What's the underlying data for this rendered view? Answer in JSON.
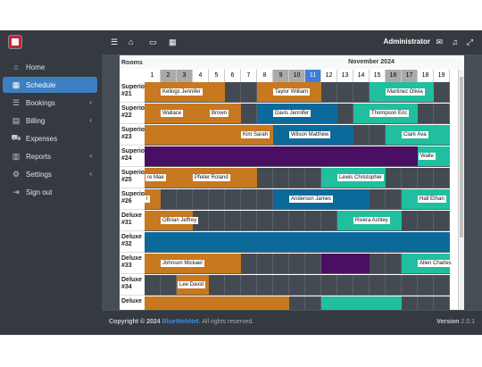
{
  "topbar": {
    "user": "Administrator"
  },
  "sidebar": {
    "items": [
      {
        "label": "Home",
        "icon": "home-icon",
        "active": false,
        "chevron": false
      },
      {
        "label": "Schedule",
        "icon": "calendar-icon",
        "active": true,
        "chevron": false
      },
      {
        "label": "Bookings",
        "icon": "list-icon",
        "active": false,
        "chevron": true
      },
      {
        "label": "Billing",
        "icon": "file-icon",
        "active": false,
        "chevron": true
      },
      {
        "label": "Expenses",
        "icon": "cart-icon",
        "active": false,
        "chevron": false
      },
      {
        "label": "Reports",
        "icon": "chart-icon",
        "active": false,
        "chevron": true
      },
      {
        "label": "Settings",
        "icon": "gear-icon",
        "active": false,
        "chevron": true
      },
      {
        "label": "Sign out",
        "icon": "signout-icon",
        "active": false,
        "chevron": false
      }
    ]
  },
  "schedule": {
    "rooms_header": "Rooms",
    "month": "November 2024",
    "today": 11,
    "days": [
      1,
      2,
      3,
      4,
      5,
      6,
      7,
      8,
      9,
      10,
      11,
      12,
      13,
      14,
      15,
      16,
      17,
      18,
      19
    ],
    "weekend_days": [
      2,
      3,
      9,
      10,
      16,
      17
    ],
    "rooms": [
      {
        "type": "Superior",
        "number": "#21"
      },
      {
        "type": "Superior",
        "number": "#22"
      },
      {
        "type": "Superior",
        "number": "#23"
      },
      {
        "type": "Superior",
        "number": "#24"
      },
      {
        "type": "Superior",
        "number": "#25"
      },
      {
        "type": "Superior",
        "number": "#26"
      },
      {
        "type": "Deluxe",
        "number": "#31"
      },
      {
        "type": "Deluxe",
        "number": "#32"
      },
      {
        "type": "Deluxe",
        "number": "#33"
      },
      {
        "type": "Deluxe",
        "number": "#34"
      },
      {
        "type": "Deluxe",
        "number": ""
      }
    ],
    "colors": {
      "orange": "#c8781e",
      "blue": "#0c6a9a",
      "teal": "#1fbf9f",
      "purple": "#4a0f62"
    },
    "bookings": [
      {
        "room": 0,
        "start": 1,
        "end": 5,
        "color": "orange",
        "label": "Kellogs Jennifer"
      },
      {
        "room": 0,
        "start": 8,
        "end": 11,
        "color": "orange",
        "label": "Taylor William"
      },
      {
        "room": 0,
        "start": 15,
        "end": 18,
        "color": "teal",
        "label": "Martinez Olivia"
      },
      {
        "room": 1,
        "start": 1,
        "end": 4,
        "color": "orange",
        "label": "Wallace"
      },
      {
        "room": 1,
        "start": 5,
        "end": 6,
        "color": "orange",
        "label": "Brown"
      },
      {
        "room": 1,
        "start": 8,
        "end": 12,
        "color": "blue",
        "label": "Davis Jennifer"
      },
      {
        "room": 1,
        "start": 14,
        "end": 17,
        "color": "teal",
        "label": "Thompson Eric"
      },
      {
        "room": 2,
        "start": 1,
        "end": 5,
        "color": "orange",
        "label": ""
      },
      {
        "room": 2,
        "start": 6,
        "end": 8,
        "color": "orange",
        "label": "Kim Sarah"
      },
      {
        "room": 2,
        "start": 9,
        "end": 13,
        "color": "blue",
        "label": "Wilson Matthew"
      },
      {
        "room": 2,
        "start": 16,
        "end": 19,
        "color": "teal",
        "label": "Clark Ava"
      },
      {
        "room": 3,
        "start": 1,
        "end": 17,
        "color": "purple",
        "label": ""
      },
      {
        "room": 3,
        "start": 18,
        "end": 19,
        "color": "teal",
        "label": "Walle"
      },
      {
        "room": 4,
        "start": 1,
        "end": 2,
        "color": "orange",
        "label": "re Mae"
      },
      {
        "room": 4,
        "start": 3,
        "end": 7,
        "color": "orange",
        "label": "Pfeiler Roland"
      },
      {
        "room": 4,
        "start": 12,
        "end": 15,
        "color": "teal",
        "label": "Lewis Christopher"
      },
      {
        "room": 5,
        "start": 1,
        "end": 1,
        "color": "orange",
        "label": "r"
      },
      {
        "room": 5,
        "start": 9,
        "end": 14,
        "color": "blue",
        "label": "Anderson James"
      },
      {
        "room": 5,
        "start": 17,
        "end": 19,
        "color": "teal",
        "label": "Hall Ethan"
      },
      {
        "room": 6,
        "start": 1,
        "end": 3,
        "color": "orange",
        "label": "OBrian Jeffrey"
      },
      {
        "room": 6,
        "start": 13,
        "end": 16,
        "color": "teal",
        "label": "Rivera Ashley"
      },
      {
        "room": 7,
        "start": 1,
        "end": 19,
        "color": "blue",
        "label": ""
      },
      {
        "room": 8,
        "start": 1,
        "end": 6,
        "color": "orange",
        "label": "Johnson Mickael"
      },
      {
        "room": 8,
        "start": 12,
        "end": 14,
        "color": "purple",
        "label": ""
      },
      {
        "room": 8,
        "start": 17,
        "end": 19,
        "color": "teal",
        "label": "Allen Charles"
      },
      {
        "room": 9,
        "start": 3,
        "end": 4,
        "color": "orange",
        "label": "Lee David"
      },
      {
        "room": 10,
        "start": 1,
        "end": 9,
        "color": "orange",
        "label": ""
      },
      {
        "room": 10,
        "start": 12,
        "end": 16,
        "color": "teal",
        "label": ""
      }
    ]
  },
  "footer": {
    "copyright_prefix": "Copyright © 2024",
    "brand": "BlueWebNet",
    "rights": ". All rights reserved.",
    "version_label": "Version",
    "version": "2.0.1"
  }
}
